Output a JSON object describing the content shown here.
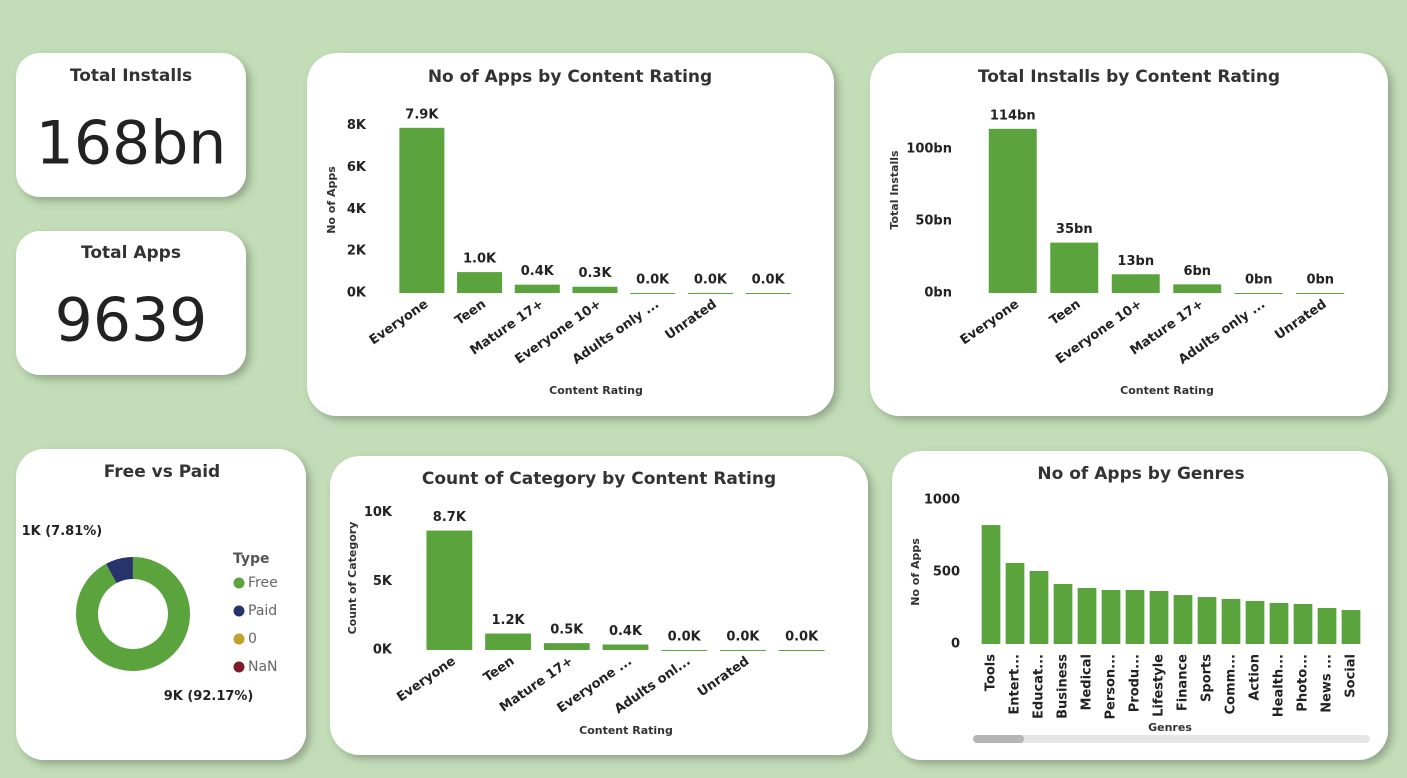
{
  "cards": [
    {
      "title": "Total Installs",
      "value": "168bn"
    },
    {
      "title": "Total Apps",
      "value": 9639
    }
  ],
  "chart_data": [
    {
      "type": "bar",
      "title": "No of Apps by Content Rating",
      "x_label": "Content Rating",
      "y_label": "No of Apps",
      "categories": [
        "Everyone",
        "Teen",
        "Mature 17+",
        "Everyone 10+",
        "Adults only ...",
        "Unrated",
        null
      ],
      "values": [
        7900,
        1000,
        400,
        300,
        3,
        2,
        1
      ],
      "value_labels": [
        "7.9K",
        "1.0K",
        "0.4K",
        "0.3K",
        "0.0K",
        "0.0K",
        "0.0K"
      ],
      "color": "#5ba33d",
      "ylim": [
        0,
        8800
      ],
      "yticks": [
        {
          "value": 0,
          "label": "0K"
        },
        {
          "value": 2000,
          "label": "2K"
        },
        {
          "value": 4000,
          "label": "4K"
        },
        {
          "value": 6000,
          "label": "6K"
        },
        {
          "value": 8000,
          "label": "8K"
        }
      ]
    },
    {
      "type": "bar",
      "title": "Total Installs by Content Rating",
      "x_label": "Content Rating",
      "y_label": "Total Installs",
      "categories": [
        "Everyone",
        "Teen",
        "Everyone 10+",
        "Mature 17+",
        "Adults only ...",
        "Unrated"
      ],
      "values": [
        114,
        35,
        13,
        6,
        0.001,
        0.0005
      ],
      "value_labels": [
        "114bn",
        "35bn",
        "13bn",
        "6bn",
        "0bn",
        "0bn"
      ],
      "color": "#5ba33d",
      "ylim": [
        0,
        125
      ],
      "yticks": [
        {
          "value": 0,
          "label": "0bn"
        },
        {
          "value": 50,
          "label": "50bn"
        },
        {
          "value": 100,
          "label": "100bn"
        }
      ]
    },
    {
      "type": "pie",
      "title": "Free vs Paid",
      "legend_title": "Type",
      "categories": [
        "Free",
        "Paid",
        "0",
        "NaN"
      ],
      "values": [
        8884,
        753,
        1,
        1
      ],
      "value_labels": [
        "9K (92.17%)",
        "1K (7.81%)",
        null,
        null
      ],
      "colors": [
        "#5ba33d",
        "#27346b",
        "#c1a02c",
        "#7d1c2a"
      ]
    },
    {
      "type": "bar",
      "title": "Count of Category by Content Rating",
      "x_label": "Content Rating",
      "y_label": "Count of Category",
      "categories": [
        "Everyone",
        "Teen",
        "Mature 17+",
        "Everyone ...",
        "Adults onl...",
        "Unrated",
        null
      ],
      "values": [
        8700,
        1200,
        500,
        400,
        3,
        2,
        1
      ],
      "value_labels": [
        "8.7K",
        "1.2K",
        "0.5K",
        "0.4K",
        "0.0K",
        "0.0K",
        "0.0K"
      ],
      "color": "#5ba33d",
      "ylim": [
        0,
        11000
      ],
      "yticks": [
        {
          "value": 0,
          "label": "0K"
        },
        {
          "value": 5000,
          "label": "5K"
        },
        {
          "value": 10000,
          "label": "10K"
        }
      ]
    },
    {
      "type": "bar",
      "title": "No of Apps by Genres",
      "x_label": "Genres",
      "y_label": "No of Apps",
      "categories": [
        "Tools",
        "Entert...",
        "Educat...",
        "Business",
        "Medical",
        "Person...",
        "Produ...",
        "Lifestyle",
        "Finance",
        "Sports",
        "Comm...",
        "Action",
        "Health...",
        "Photo...",
        "News ...",
        "Social"
      ],
      "values": [
        826,
        563,
        507,
        417,
        389,
        375,
        375,
        368,
        340,
        326,
        313,
        299,
        285,
        278,
        250,
        236
      ],
      "color": "#5ba33d",
      "ylim": [
        0,
        1000
      ],
      "yticks": [
        0,
        500,
        1000
      ]
    }
  ]
}
